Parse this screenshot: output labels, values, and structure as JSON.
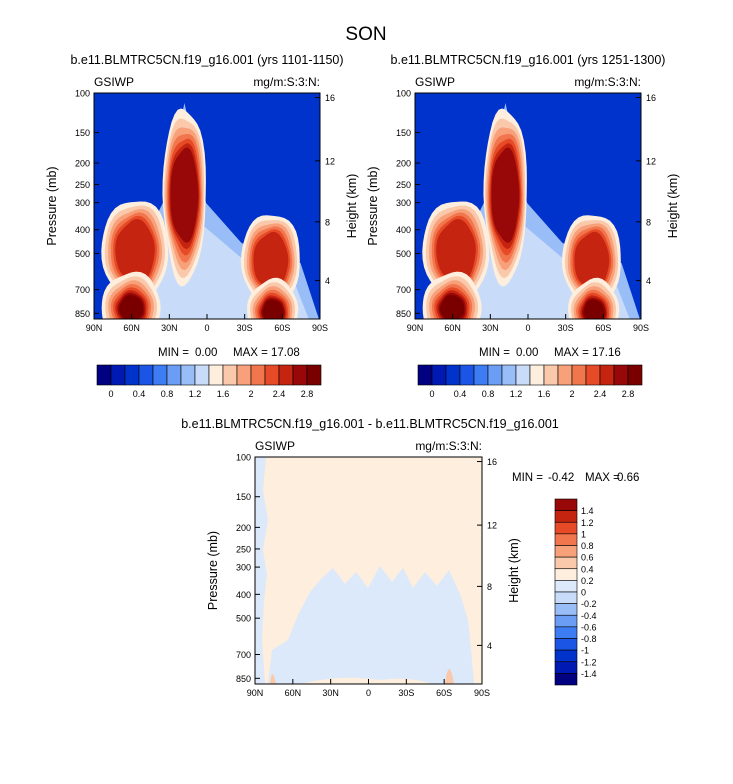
{
  "figure": {
    "title": "SON"
  },
  "colors": {
    "abs_palette": [
      "#000080",
      "#0019b3",
      "#0033cc",
      "#1a55e6",
      "#3d7cf2",
      "#6b9df5",
      "#99bdf7",
      "#c8dcf9",
      "#fdeede",
      "#fac9ab",
      "#f7a07a",
      "#f2764d",
      "#e64a26",
      "#c42410",
      "#990808",
      "#7a0000"
    ],
    "diff_palette": [
      "#000080",
      "#0019b3",
      "#0033cc",
      "#1a55e6",
      "#3d7cf2",
      "#6b9df5",
      "#99bdf7",
      "#c8dcf9",
      "#dbe9fb",
      "#fdeede",
      "#fac9ab",
      "#f7a07a",
      "#f2764d",
      "#e64a26",
      "#c42410",
      "#990808"
    ],
    "field_background": "#0033cc"
  },
  "chart_data": [
    {
      "type": "heatmap",
      "title": "b.e11.BLMTRC5CN.f19_g16.001 (yrs 1101-1150)",
      "left_label": "GSIWP",
      "right_label": "mg/m:S:3:N:",
      "ylabel": "Pressure (mb)",
      "y2label": "Height (km)",
      "x_ticks": [
        "90N",
        "60N",
        "30N",
        "0",
        "30S",
        "60S",
        "90S"
      ],
      "y_ticks": [
        "100",
        "150",
        "200",
        "250",
        "300",
        "400",
        "500",
        "700",
        "850"
      ],
      "y2_ticks": [
        "16",
        "12",
        "8",
        "4"
      ],
      "min_label": "MIN =",
      "min_value": "0.00",
      "max_label": "MAX =",
      "max_value": "17.08",
      "colorbar_labels": [
        "0",
        "0.4",
        "0.8",
        "1.2",
        "1.6",
        "2",
        "2.4",
        "2.8"
      ]
    },
    {
      "type": "heatmap",
      "title": "b.e11.BLMTRC5CN.f19_g16.001 (yrs 1251-1300)",
      "left_label": "GSIWP",
      "right_label": "mg/m:S:3:N:",
      "ylabel": "Pressure (mb)",
      "y2label": "Height (km)",
      "x_ticks": [
        "90N",
        "60N",
        "30N",
        "0",
        "30S",
        "60S",
        "90S"
      ],
      "y_ticks": [
        "100",
        "150",
        "200",
        "250",
        "300",
        "400",
        "500",
        "700",
        "850"
      ],
      "y2_ticks": [
        "16",
        "12",
        "8",
        "4"
      ],
      "min_label": "MIN =",
      "min_value": "0.00",
      "max_label": "MAX =",
      "max_value": "17.16",
      "colorbar_labels": [
        "0",
        "0.4",
        "0.8",
        "1.2",
        "1.6",
        "2",
        "2.4",
        "2.8"
      ]
    },
    {
      "type": "heatmap",
      "title": "b.e11.BLMTRC5CN.f19_g16.001 - b.e11.BLMTRC5CN.f19_g16.001",
      "left_label": "GSIWP",
      "right_label": "mg/m:S:3:N:",
      "ylabel": "Pressure (mb)",
      "y2label": "Height (km)",
      "x_ticks": [
        "90N",
        "60N",
        "30N",
        "0",
        "30S",
        "60S",
        "90S"
      ],
      "y_ticks": [
        "100",
        "150",
        "200",
        "250",
        "300",
        "400",
        "500",
        "700",
        "850"
      ],
      "y2_ticks": [
        "16",
        "12",
        "8",
        "4"
      ],
      "min_label": "MIN =",
      "min_value": "-0.42",
      "max_label": "MAX =",
      "max_value": "0.66",
      "colorbar_labels": [
        "1.4",
        "1.2",
        "1",
        "0.8",
        "0.6",
        "0.4",
        "0.2",
        "0",
        "-0.2",
        "-0.4",
        "-0.6",
        "-0.8",
        "-1",
        "-1.2",
        "-1.4"
      ]
    }
  ]
}
